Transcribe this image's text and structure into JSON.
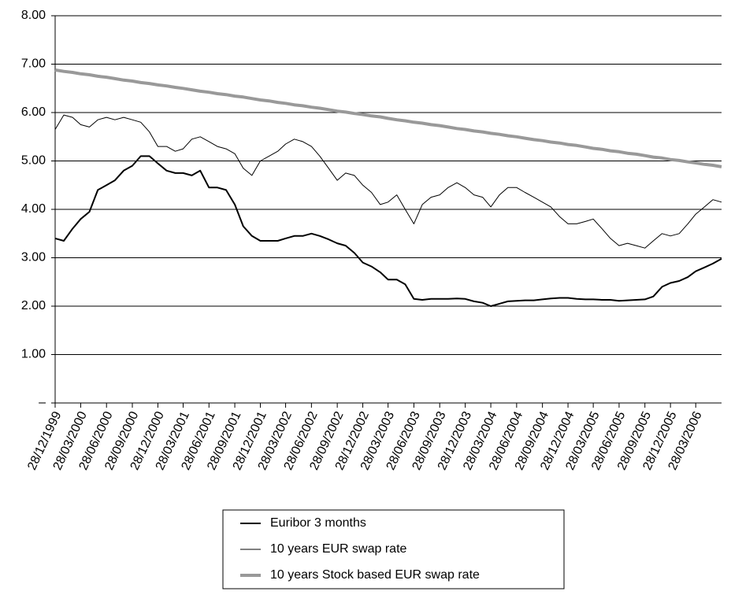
{
  "chart_data": {
    "type": "line",
    "x": [
      "28/12/1999",
      "28/01/2000",
      "28/02/2000",
      "28/03/2000",
      "28/04/2000",
      "28/05/2000",
      "28/06/2000",
      "28/07/2000",
      "28/08/2000",
      "28/09/2000",
      "28/10/2000",
      "28/11/2000",
      "28/12/2000",
      "28/01/2001",
      "28/02/2001",
      "28/03/2001",
      "28/04/2001",
      "28/05/2001",
      "28/06/2001",
      "28/07/2001",
      "28/08/2001",
      "28/09/2001",
      "28/10/2001",
      "28/11/2001",
      "28/12/2001",
      "28/01/2002",
      "28/02/2002",
      "28/03/2002",
      "28/04/2002",
      "28/05/2002",
      "28/06/2002",
      "28/07/2002",
      "28/08/2002",
      "28/09/2002",
      "28/10/2002",
      "28/11/2002",
      "28/12/2002",
      "28/01/2003",
      "28/02/2003",
      "28/03/2003",
      "28/04/2003",
      "28/05/2003",
      "28/06/2003",
      "28/07/2003",
      "28/08/2003",
      "28/09/2003",
      "28/10/2003",
      "28/11/2003",
      "28/12/2003",
      "28/01/2004",
      "28/02/2004",
      "28/03/2004",
      "28/04/2004",
      "28/05/2004",
      "28/06/2004",
      "28/07/2004",
      "28/08/2004",
      "28/09/2004",
      "28/10/2004",
      "28/11/2004",
      "28/12/2004",
      "28/01/2005",
      "28/02/2005",
      "28/03/2005",
      "28/04/2005",
      "28/05/2005",
      "28/06/2005",
      "28/07/2005",
      "28/08/2005",
      "28/09/2005",
      "28/10/2005",
      "28/11/2005",
      "28/12/2005",
      "28/01/2006",
      "28/02/2006",
      "28/03/2006",
      "28/04/2006",
      "28/05/2006",
      "28/06/2006"
    ],
    "series": [
      {
        "name": "Euribor 3 months",
        "color": "#000000",
        "values": [
          3.4,
          3.35,
          3.6,
          3.8,
          3.95,
          4.4,
          4.5,
          4.6,
          4.8,
          4.9,
          5.1,
          5.1,
          4.95,
          4.8,
          4.75,
          4.75,
          4.7,
          4.8,
          4.45,
          4.45,
          4.4,
          4.1,
          3.65,
          3.45,
          3.35,
          3.35,
          3.35,
          3.4,
          3.45,
          3.45,
          3.5,
          3.45,
          3.38,
          3.3,
          3.25,
          3.1,
          2.9,
          2.82,
          2.7,
          2.55,
          2.55,
          2.45,
          2.15,
          2.13,
          2.15,
          2.15,
          2.15,
          2.16,
          2.15,
          2.1,
          2.07,
          2.0,
          2.05,
          2.1,
          2.11,
          2.12,
          2.12,
          2.14,
          2.16,
          2.17,
          2.17,
          2.15,
          2.14,
          2.14,
          2.13,
          2.13,
          2.11,
          2.12,
          2.13,
          2.14,
          2.2,
          2.4,
          2.48,
          2.52,
          2.6,
          2.72,
          2.8,
          2.88,
          2.98
        ]
      },
      {
        "name": "10 years EUR swap rate",
        "color": "#000000",
        "values": [
          5.65,
          5.95,
          5.9,
          5.75,
          5.7,
          5.85,
          5.9,
          5.85,
          5.9,
          5.85,
          5.8,
          5.6,
          5.3,
          5.3,
          5.2,
          5.25,
          5.45,
          5.5,
          5.4,
          5.3,
          5.25,
          5.15,
          4.85,
          4.7,
          5.0,
          5.1,
          5.2,
          5.35,
          5.45,
          5.4,
          5.3,
          5.1,
          4.85,
          4.6,
          4.75,
          4.7,
          4.5,
          4.35,
          4.1,
          4.15,
          4.3,
          4.0,
          3.7,
          4.1,
          4.25,
          4.3,
          4.45,
          4.55,
          4.45,
          4.3,
          4.25,
          4.05,
          4.3,
          4.45,
          4.45,
          4.35,
          4.25,
          4.15,
          4.05,
          3.85,
          3.7,
          3.7,
          3.75,
          3.8,
          3.6,
          3.4,
          3.25,
          3.3,
          3.25,
          3.2,
          3.35,
          3.5,
          3.45,
          3.5,
          3.7,
          3.9,
          4.05,
          4.2,
          4.15
        ]
      },
      {
        "name": "10 years Stock based EUR swap rate",
        "color": "#999999",
        "values": [
          6.88,
          6.85,
          6.83,
          6.8,
          6.78,
          6.75,
          6.73,
          6.7,
          6.67,
          6.65,
          6.62,
          6.6,
          6.57,
          6.55,
          6.52,
          6.5,
          6.47,
          6.44,
          6.42,
          6.39,
          6.37,
          6.34,
          6.32,
          6.29,
          6.26,
          6.24,
          6.21,
          6.19,
          6.16,
          6.14,
          6.11,
          6.09,
          6.06,
          6.03,
          6.01,
          5.98,
          5.96,
          5.93,
          5.91,
          5.88,
          5.85,
          5.83,
          5.8,
          5.78,
          5.75,
          5.73,
          5.7,
          5.67,
          5.65,
          5.62,
          5.6,
          5.57,
          5.55,
          5.52,
          5.5,
          5.47,
          5.44,
          5.42,
          5.39,
          5.37,
          5.34,
          5.32,
          5.29,
          5.26,
          5.24,
          5.21,
          5.19,
          5.16,
          5.14,
          5.11,
          5.08,
          5.06,
          5.03,
          5.01,
          4.98,
          4.96,
          4.93,
          4.91,
          4.88
        ]
      }
    ],
    "xlim": [
      "28/12/1999",
      "28/06/2006"
    ],
    "xticks": [
      "28/12/1999",
      "28/03/2000",
      "28/06/2000",
      "28/09/2000",
      "28/12/2000",
      "28/03/2001",
      "28/06/2001",
      "28/09/2001",
      "28/12/2001",
      "28/03/2002",
      "28/06/2002",
      "28/09/2002",
      "28/12/2002",
      "28/03/2003",
      "28/06/2003",
      "28/09/2003",
      "28/12/2003",
      "28/03/2004",
      "28/06/2004",
      "28/09/2004",
      "28/12/2004",
      "28/03/2005",
      "28/06/2005",
      "28/09/2005",
      "28/12/2005",
      "28/03/2006"
    ],
    "ylim": [
      0,
      8
    ],
    "yticks": [
      {
        "value": 0,
        "label": "–"
      },
      {
        "value": 1,
        "label": "1.00"
      },
      {
        "value": 2,
        "label": "2.00"
      },
      {
        "value": 3,
        "label": "3.00"
      },
      {
        "value": 4,
        "label": "4.00"
      },
      {
        "value": 5,
        "label": "5.00"
      },
      {
        "value": 6,
        "label": "6.00"
      },
      {
        "value": 7,
        "label": "7.00"
      },
      {
        "value": 8,
        "label": "8.00"
      }
    ],
    "grid": true,
    "legend": "bottom"
  }
}
